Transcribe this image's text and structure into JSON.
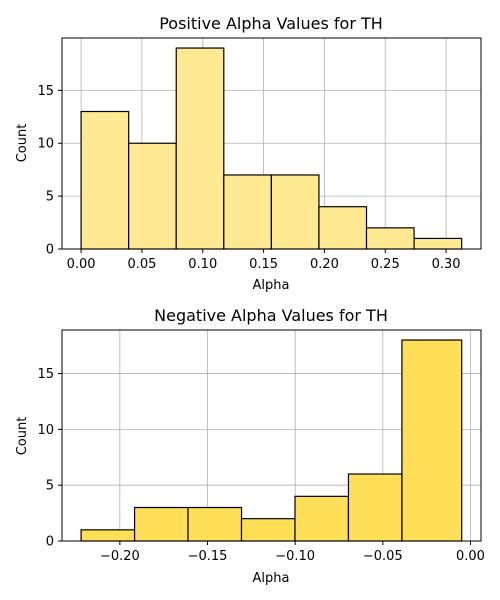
{
  "chart_data": [
    {
      "type": "bar",
      "title": "Positive Alpha Values for TH",
      "xlabel": "Alpha",
      "ylabel": "Count",
      "color": "#ffe993",
      "edge_color": "#000000",
      "grid": true,
      "xlim": [
        -0.0157,
        0.3287
      ],
      "ylim": [
        0,
        19.95
      ],
      "xticks": [
        0.0,
        0.05,
        0.1,
        0.15,
        0.2,
        0.25,
        0.3
      ],
      "xtick_labels": [
        "0.00",
        "0.05",
        "0.10",
        "0.15",
        "0.20",
        "0.25",
        "0.30"
      ],
      "yticks": [
        0,
        5,
        10,
        15
      ],
      "ytick_labels": [
        "0",
        "5",
        "10",
        "15"
      ],
      "bins": [
        {
          "start": 0.0,
          "end": 0.0391,
          "count": 13
        },
        {
          "start": 0.0391,
          "end": 0.0782,
          "count": 10
        },
        {
          "start": 0.0782,
          "end": 0.1173,
          "count": 19
        },
        {
          "start": 0.1173,
          "end": 0.1564,
          "count": 7
        },
        {
          "start": 0.1564,
          "end": 0.1955,
          "count": 7
        },
        {
          "start": 0.1955,
          "end": 0.2346,
          "count": 4
        },
        {
          "start": 0.2346,
          "end": 0.2737,
          "count": 2
        },
        {
          "start": 0.2737,
          "end": 0.3128,
          "count": 1
        }
      ]
    },
    {
      "type": "bar",
      "title": "Negative Alpha Values for TH",
      "xlabel": "Alpha",
      "ylabel": "Count",
      "color": "#ffdf57",
      "edge_color": "#000000",
      "grid": true,
      "xlim": [
        -0.233,
        0.006
      ],
      "ylim": [
        0,
        18.9
      ],
      "xticks": [
        -0.2,
        -0.15,
        -0.1,
        -0.05,
        0.0
      ],
      "xtick_labels": [
        "−0.20",
        "−0.15",
        "−0.10",
        "−0.05",
        "0.00"
      ],
      "yticks": [
        0,
        5,
        10,
        15
      ],
      "ytick_labels": [
        "0",
        "5",
        "10",
        "15"
      ],
      "bins": [
        {
          "start": -0.2221,
          "end": -0.1916,
          "count": 1
        },
        {
          "start": -0.1916,
          "end": -0.1611,
          "count": 3
        },
        {
          "start": -0.1611,
          "end": -0.1306,
          "count": 3
        },
        {
          "start": -0.1306,
          "end": -0.1001,
          "count": 2
        },
        {
          "start": -0.1001,
          "end": -0.0696,
          "count": 4
        },
        {
          "start": -0.0696,
          "end": -0.0391,
          "count": 6
        },
        {
          "start": -0.0391,
          "end": -0.005,
          "count": 18
        }
      ]
    }
  ]
}
